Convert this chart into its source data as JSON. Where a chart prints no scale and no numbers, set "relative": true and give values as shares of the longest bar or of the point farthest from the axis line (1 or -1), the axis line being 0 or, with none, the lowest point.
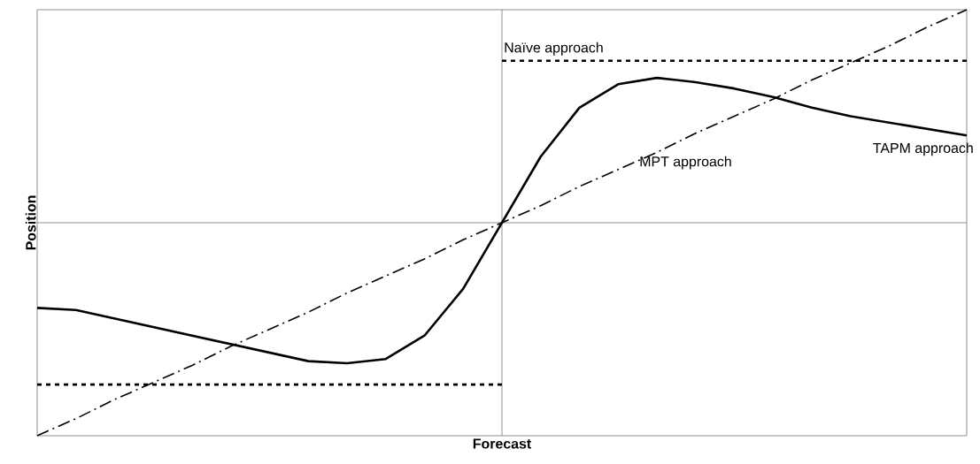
{
  "chart_data": {
    "type": "line",
    "relative": true,
    "xlabel": "Forecast",
    "ylabel": "Position",
    "categories": [
      null,
      null,
      null,
      null,
      null,
      null,
      null,
      null,
      null,
      null,
      null,
      null,
      null,
      null,
      null,
      null,
      null,
      null,
      null,
      null,
      null,
      null,
      null,
      null,
      null
    ],
    "series": [
      {
        "name": "Naïve approach",
        "color": "#000000",
        "line_style": "dotted",
        "values": [
          null,
          null,
          null,
          null,
          null,
          null,
          null,
          null,
          null,
          null,
          null,
          null,
          0.76,
          0.76,
          0.76,
          0.76,
          0.76,
          0.76,
          0.76,
          0.76,
          0.76,
          0.76,
          0.76,
          0.76,
          0.76
        ]
      },
      {
        "color": "#000000",
        "line_style": "dotted",
        "values": [
          -0.76,
          -0.76,
          -0.76,
          -0.76,
          -0.76,
          -0.76,
          -0.76,
          -0.76,
          -0.76,
          -0.76,
          -0.76,
          -0.76,
          -0.76,
          null,
          null,
          null,
          null,
          null,
          null,
          null,
          null,
          null,
          null,
          null,
          null
        ]
      },
      {
        "name": "MPT approach",
        "color": "#000000",
        "line_style": "dashdot",
        "values": [
          -1,
          -0.92,
          -0.83,
          -0.75,
          -0.67,
          -0.58,
          -0.5,
          -0.42,
          -0.33,
          -0.25,
          -0.17,
          -0.08,
          0,
          0.08,
          0.17,
          0.25,
          0.33,
          0.42,
          0.5,
          0.58,
          0.67,
          0.75,
          0.83,
          0.92,
          1
        ]
      },
      {
        "name": "TAPM approach",
        "color": "#000000",
        "line_style": "solid",
        "values": [
          -0.4,
          -0.41,
          -0.45,
          -0.49,
          -0.53,
          -0.57,
          -0.61,
          -0.65,
          -0.66,
          -0.64,
          -0.53,
          -0.31,
          0,
          0.31,
          0.54,
          0.65,
          0.68,
          0.66,
          0.63,
          0.59,
          0.54,
          0.5,
          0.47,
          0.44,
          0.41
        ]
      }
    ]
  }
}
